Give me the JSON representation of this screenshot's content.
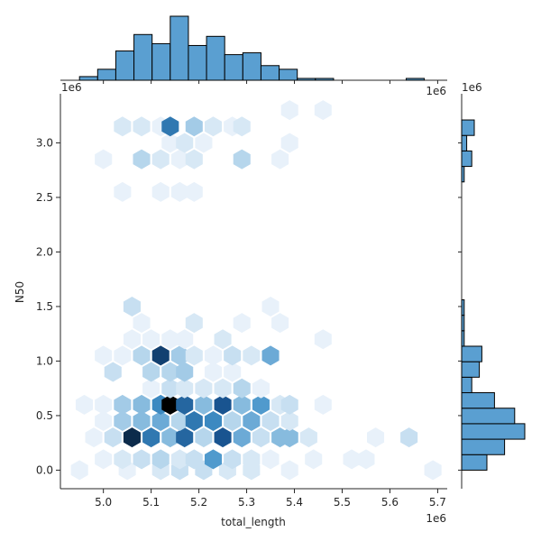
{
  "chart_data": {
    "type": "hexbin-joint",
    "xlabel": "total_length",
    "ylabel": "N50",
    "x_offset_label": "1e6",
    "y_offset_label": "1e6",
    "marg_x_offset_label": "1e6",
    "marg_y_offset_label": "1e6",
    "xlim": [
      4.91,
      5.72
    ],
    "ylim": [
      -0.17,
      3.45
    ],
    "x_ticks": [
      5.0,
      5.1,
      5.2,
      5.3,
      5.4,
      5.5,
      5.6,
      5.7
    ],
    "x_tick_labels": [
      "5.0",
      "5.1",
      "5.2",
      "5.3",
      "5.4",
      "5.5",
      "5.6",
      "5.7"
    ],
    "y_ticks": [
      0.0,
      0.5,
      1.0,
      1.5,
      2.0,
      2.5,
      3.0
    ],
    "y_tick_labels": [
      "0.0",
      "0.5",
      "1.0",
      "1.5",
      "2.0",
      "2.5",
      "3.0"
    ],
    "colors": {
      "bar_fill": "#5a9fd1",
      "hex_light": "#e8f1fa",
      "hex_dark": "#000000"
    },
    "hexbins": [
      {
        "x": 4.95,
        "y": 0.0,
        "count": 1
      },
      {
        "x": 5.05,
        "y": 0.0,
        "count": 1
      },
      {
        "x": 5.12,
        "y": 0.0,
        "count": 2
      },
      {
        "x": 5.16,
        "y": 0.0,
        "count": 3
      },
      {
        "x": 5.21,
        "y": 0.0,
        "count": 3
      },
      {
        "x": 5.26,
        "y": 0.0,
        "count": 2
      },
      {
        "x": 5.31,
        "y": 0.0,
        "count": 2
      },
      {
        "x": 5.39,
        "y": 0.0,
        "count": 1
      },
      {
        "x": 5.69,
        "y": 0.0,
        "count": 1
      },
      {
        "x": 5.0,
        "y": 0.1,
        "count": 1
      },
      {
        "x": 5.04,
        "y": 0.1,
        "count": 2
      },
      {
        "x": 5.08,
        "y": 0.1,
        "count": 3
      },
      {
        "x": 5.12,
        "y": 0.1,
        "count": 4
      },
      {
        "x": 5.16,
        "y": 0.1,
        "count": 2
      },
      {
        "x": 5.19,
        "y": 0.1,
        "count": 3
      },
      {
        "x": 5.23,
        "y": 0.1,
        "count": 8
      },
      {
        "x": 5.27,
        "y": 0.1,
        "count": 3
      },
      {
        "x": 5.31,
        "y": 0.1,
        "count": 2
      },
      {
        "x": 5.35,
        "y": 0.1,
        "count": 1
      },
      {
        "x": 5.44,
        "y": 0.1,
        "count": 1
      },
      {
        "x": 5.52,
        "y": 0.1,
        "count": 1
      },
      {
        "x": 5.55,
        "y": 0.1,
        "count": 1
      },
      {
        "x": 4.98,
        "y": 0.3,
        "count": 1
      },
      {
        "x": 5.02,
        "y": 0.3,
        "count": 3
      },
      {
        "x": 5.06,
        "y": 0.3,
        "count": 14
      },
      {
        "x": 5.1,
        "y": 0.3,
        "count": 10
      },
      {
        "x": 5.14,
        "y": 0.3,
        "count": 6
      },
      {
        "x": 5.17,
        "y": 0.3,
        "count": 11
      },
      {
        "x": 5.21,
        "y": 0.3,
        "count": 4
      },
      {
        "x": 5.25,
        "y": 0.3,
        "count": 12
      },
      {
        "x": 5.29,
        "y": 0.3,
        "count": 7
      },
      {
        "x": 5.33,
        "y": 0.3,
        "count": 3
      },
      {
        "x": 5.37,
        "y": 0.3,
        "count": 6
      },
      {
        "x": 5.39,
        "y": 0.3,
        "count": 6
      },
      {
        "x": 5.43,
        "y": 0.3,
        "count": 2
      },
      {
        "x": 5.57,
        "y": 0.3,
        "count": 1
      },
      {
        "x": 5.64,
        "y": 0.3,
        "count": 3
      },
      {
        "x": 5.0,
        "y": 0.45,
        "count": 1
      },
      {
        "x": 5.04,
        "y": 0.45,
        "count": 5
      },
      {
        "x": 5.08,
        "y": 0.45,
        "count": 6
      },
      {
        "x": 5.12,
        "y": 0.45,
        "count": 7
      },
      {
        "x": 5.16,
        "y": 0.45,
        "count": 4
      },
      {
        "x": 5.19,
        "y": 0.45,
        "count": 10
      },
      {
        "x": 5.23,
        "y": 0.45,
        "count": 9
      },
      {
        "x": 5.27,
        "y": 0.45,
        "count": 4
      },
      {
        "x": 5.31,
        "y": 0.45,
        "count": 7
      },
      {
        "x": 5.35,
        "y": 0.45,
        "count": 3
      },
      {
        "x": 5.39,
        "y": 0.45,
        "count": 2
      },
      {
        "x": 4.96,
        "y": 0.6,
        "count": 1
      },
      {
        "x": 5.0,
        "y": 0.6,
        "count": 1
      },
      {
        "x": 5.04,
        "y": 0.6,
        "count": 5
      },
      {
        "x": 5.08,
        "y": 0.6,
        "count": 6
      },
      {
        "x": 5.12,
        "y": 0.6,
        "count": 9
      },
      {
        "x": 5.14,
        "y": 0.6,
        "count": 16
      },
      {
        "x": 5.17,
        "y": 0.6,
        "count": 11
      },
      {
        "x": 5.21,
        "y": 0.6,
        "count": 6
      },
      {
        "x": 5.25,
        "y": 0.6,
        "count": 12
      },
      {
        "x": 5.29,
        "y": 0.6,
        "count": 6
      },
      {
        "x": 5.33,
        "y": 0.6,
        "count": 8
      },
      {
        "x": 5.37,
        "y": 0.6,
        "count": 2
      },
      {
        "x": 5.39,
        "y": 0.6,
        "count": 3
      },
      {
        "x": 5.46,
        "y": 0.6,
        "count": 1
      },
      {
        "x": 5.1,
        "y": 0.75,
        "count": 1
      },
      {
        "x": 5.14,
        "y": 0.75,
        "count": 3
      },
      {
        "x": 5.17,
        "y": 0.75,
        "count": 2
      },
      {
        "x": 5.21,
        "y": 0.75,
        "count": 2
      },
      {
        "x": 5.25,
        "y": 0.75,
        "count": 2
      },
      {
        "x": 5.29,
        "y": 0.75,
        "count": 4
      },
      {
        "x": 5.33,
        "y": 0.75,
        "count": 1
      },
      {
        "x": 5.02,
        "y": 0.9,
        "count": 3
      },
      {
        "x": 5.1,
        "y": 0.9,
        "count": 4
      },
      {
        "x": 5.14,
        "y": 0.9,
        "count": 4
      },
      {
        "x": 5.17,
        "y": 0.9,
        "count": 5
      },
      {
        "x": 5.23,
        "y": 0.9,
        "count": 1
      },
      {
        "x": 5.27,
        "y": 0.9,
        "count": 1
      },
      {
        "x": 5.0,
        "y": 1.05,
        "count": 1
      },
      {
        "x": 5.04,
        "y": 1.05,
        "count": 1
      },
      {
        "x": 5.08,
        "y": 1.05,
        "count": 4
      },
      {
        "x": 5.12,
        "y": 1.05,
        "count": 13
      },
      {
        "x": 5.16,
        "y": 1.05,
        "count": 5
      },
      {
        "x": 5.19,
        "y": 1.05,
        "count": 2
      },
      {
        "x": 5.23,
        "y": 1.05,
        "count": 1
      },
      {
        "x": 5.27,
        "y": 1.05,
        "count": 3
      },
      {
        "x": 5.31,
        "y": 1.05,
        "count": 2
      },
      {
        "x": 5.35,
        "y": 1.05,
        "count": 7
      },
      {
        "x": 5.06,
        "y": 1.2,
        "count": 1
      },
      {
        "x": 5.1,
        "y": 1.2,
        "count": 1
      },
      {
        "x": 5.14,
        "y": 1.2,
        "count": 1
      },
      {
        "x": 5.17,
        "y": 1.2,
        "count": 1
      },
      {
        "x": 5.25,
        "y": 1.2,
        "count": 2
      },
      {
        "x": 5.46,
        "y": 1.2,
        "count": 1
      },
      {
        "x": 5.08,
        "y": 1.35,
        "count": 1
      },
      {
        "x": 5.19,
        "y": 1.35,
        "count": 2
      },
      {
        "x": 5.29,
        "y": 1.35,
        "count": 1
      },
      {
        "x": 5.37,
        "y": 1.35,
        "count": 1
      },
      {
        "x": 5.06,
        "y": 1.5,
        "count": 3
      },
      {
        "x": 5.35,
        "y": 1.5,
        "count": 1
      },
      {
        "x": 5.04,
        "y": 2.55,
        "count": 1
      },
      {
        "x": 5.12,
        "y": 2.55,
        "count": 1
      },
      {
        "x": 5.16,
        "y": 2.55,
        "count": 1
      },
      {
        "x": 5.19,
        "y": 2.55,
        "count": 1
      },
      {
        "x": 5.0,
        "y": 2.85,
        "count": 1
      },
      {
        "x": 5.08,
        "y": 2.85,
        "count": 4
      },
      {
        "x": 5.12,
        "y": 2.85,
        "count": 2
      },
      {
        "x": 5.16,
        "y": 2.85,
        "count": 1
      },
      {
        "x": 5.19,
        "y": 2.85,
        "count": 2
      },
      {
        "x": 5.29,
        "y": 2.85,
        "count": 4
      },
      {
        "x": 5.37,
        "y": 2.85,
        "count": 1
      },
      {
        "x": 5.14,
        "y": 3.0,
        "count": 1
      },
      {
        "x": 5.17,
        "y": 3.0,
        "count": 2
      },
      {
        "x": 5.21,
        "y": 3.0,
        "count": 1
      },
      {
        "x": 5.39,
        "y": 3.0,
        "count": 1
      },
      {
        "x": 5.04,
        "y": 3.15,
        "count": 2
      },
      {
        "x": 5.08,
        "y": 3.15,
        "count": 2
      },
      {
        "x": 5.12,
        "y": 3.15,
        "count": 1
      },
      {
        "x": 5.14,
        "y": 3.15,
        "count": 10
      },
      {
        "x": 5.19,
        "y": 3.15,
        "count": 5
      },
      {
        "x": 5.23,
        "y": 3.15,
        "count": 2
      },
      {
        "x": 5.27,
        "y": 3.15,
        "count": 1
      },
      {
        "x": 5.29,
        "y": 3.15,
        "count": 2
      },
      {
        "x": 5.39,
        "y": 3.3,
        "count": 1
      },
      {
        "x": 5.46,
        "y": 3.3,
        "count": 1
      }
    ],
    "marginal_x": {
      "bin_edges": [
        4.95,
        4.988,
        5.026,
        5.064,
        5.102,
        5.14,
        5.178,
        5.216,
        5.254,
        5.292,
        5.33,
        5.368,
        5.406,
        5.444,
        5.482,
        5.52,
        5.558,
        5.596,
        5.634,
        5.672,
        5.71
      ],
      "counts": [
        2,
        6,
        16,
        25,
        20,
        35,
        19,
        24,
        14,
        15,
        8,
        6,
        1,
        1,
        0,
        0,
        0,
        0,
        1,
        0
      ]
    },
    "marginal_y": {
      "bin_edges": [
        0.0,
        0.142,
        0.284,
        0.426,
        0.568,
        0.71,
        0.852,
        0.994,
        1.136,
        1.278,
        1.42,
        1.562,
        2.5,
        2.642,
        2.784,
        2.926,
        3.068,
        3.21
      ],
      "counts": [
        10,
        17,
        25,
        21,
        13,
        4,
        7,
        8,
        1,
        1,
        1,
        0,
        0,
        1,
        4,
        2,
        5
      ]
    }
  }
}
